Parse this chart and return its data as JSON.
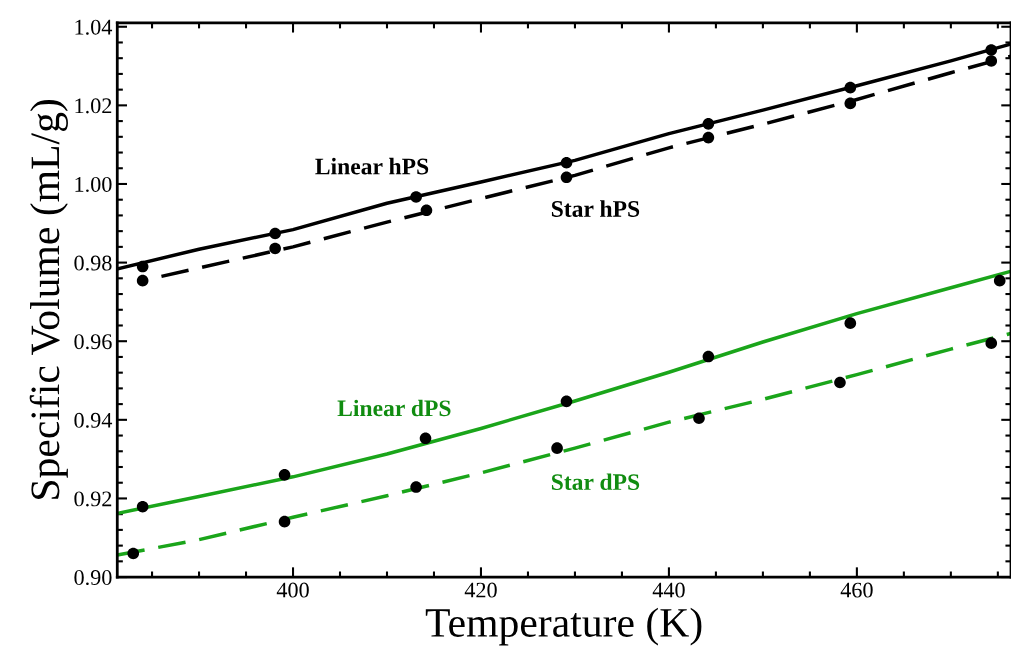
{
  "chart_data": {
    "type": "line",
    "xlabel": "Temperature (K)",
    "ylabel": "Specific Volume (mL/g)",
    "xlim": [
      381.3,
      476.4
    ],
    "ylim": [
      0.9,
      1.041
    ],
    "xticks": [
      400,
      420,
      440,
      460
    ],
    "yticks": [
      {
        "value": 0.9,
        "label": "0.90"
      },
      {
        "value": 0.92,
        "label": "0.92"
      },
      {
        "value": 0.94,
        "label": "0.94"
      },
      {
        "value": 0.96,
        "label": "0.96"
      },
      {
        "value": 0.98,
        "label": "0.98"
      },
      {
        "value": 1.0,
        "label": "1.00"
      },
      {
        "value": 1.02,
        "label": "1.02"
      },
      {
        "value": 1.04,
        "label": "1.04"
      }
    ],
    "grid": false,
    "legend": false,
    "series": [
      {
        "name": "Linear hPS",
        "color": "#000000",
        "line_style": "solid",
        "marker": "none",
        "x": [
          381.3,
          390,
          400,
          410,
          420,
          430,
          440,
          450,
          460,
          470,
          476.4
        ],
        "values": [
          0.9784,
          0.9834,
          0.9884,
          0.9951,
          1.0005,
          1.006,
          1.0128,
          1.0188,
          1.025,
          1.0313,
          1.0356
        ]
      },
      {
        "name": "Star hPS",
        "color": "#000000",
        "line_style": "dashed",
        "marker": "none",
        "x": [
          386,
          400,
          410,
          420,
          430,
          440,
          450,
          460,
          470,
          476.4
        ],
        "values": [
          0.9765,
          0.984,
          0.9903,
          0.9963,
          1.0022,
          1.0092,
          1.0152,
          1.0215,
          1.0283,
          1.0325
        ]
      },
      {
        "name": "Linear dPS",
        "color": "#1aa51a",
        "line_style": "solid",
        "marker": "none",
        "x": [
          381.3,
          390,
          400,
          410,
          420,
          430,
          440,
          450,
          460,
          470,
          476.4
        ],
        "values": [
          0.9162,
          0.9205,
          0.9255,
          0.9313,
          0.9378,
          0.9448,
          0.9521,
          0.9598,
          0.967,
          0.9736,
          0.9778
        ]
      },
      {
        "name": "Star dPS",
        "color": "#1aa51a",
        "line_style": "dashed",
        "marker": "none",
        "x": [
          381.3,
          390,
          400,
          410,
          420,
          430,
          440,
          450,
          460,
          470,
          476.4
        ],
        "values": [
          0.9056,
          0.9095,
          0.9152,
          0.9207,
          0.9265,
          0.9328,
          0.9394,
          0.9452,
          0.9515,
          0.958,
          0.962
        ]
      },
      {
        "type": "scatter",
        "color": "#000000",
        "marker": "circle",
        "x": [
          384.0,
          398.1,
          413.1,
          429.1,
          444.2,
          459.3,
          474.3
        ],
        "values": [
          0.979,
          0.9874,
          0.9967,
          1.0054,
          1.0153,
          1.0245,
          1.0341
        ]
      },
      {
        "type": "scatter",
        "color": "#000000",
        "marker": "circle",
        "x": [
          384.0,
          398.1,
          414.2,
          429.1,
          444.2,
          459.3,
          474.3
        ],
        "values": [
          0.9754,
          0.9836,
          0.9933,
          1.0017,
          1.0118,
          1.0205,
          1.0313
        ]
      },
      {
        "type": "scatter",
        "color": "#000000",
        "marker": "circle",
        "x": [
          384.0,
          399.1,
          414.1,
          429.1,
          444.2,
          459.3,
          475.2
        ],
        "values": [
          0.9179,
          0.926,
          0.9353,
          0.9447,
          0.9561,
          0.9646,
          0.9754
        ]
      },
      {
        "type": "scatter",
        "color": "#000000",
        "marker": "circle",
        "x": [
          383.0,
          399.1,
          413.1,
          428.1,
          443.2,
          458.2,
          474.3
        ],
        "values": [
          0.906,
          0.9141,
          0.9229,
          0.9328,
          0.9404,
          0.9495,
          0.9595
        ]
      }
    ]
  }
}
